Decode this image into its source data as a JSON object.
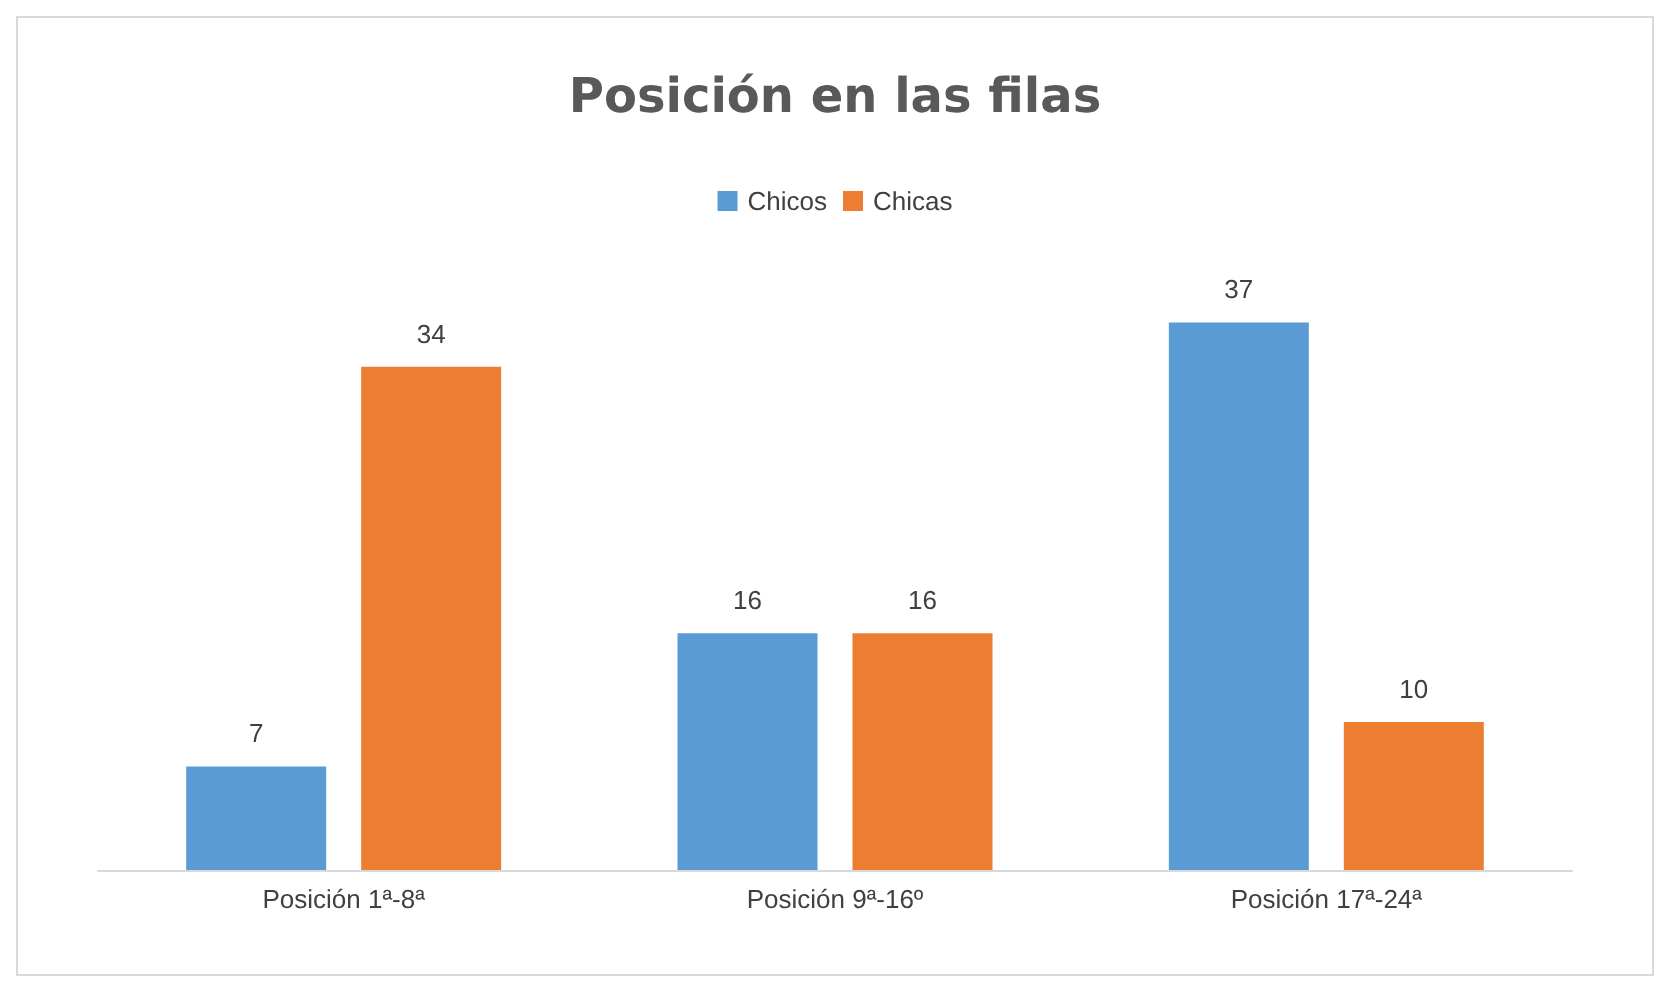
{
  "chart_data": {
    "type": "bar",
    "title": "Posición en las filas",
    "categories": [
      "Posición 1ª-8ª",
      "Posición 9ª-16º",
      "Posición 17ª-24ª"
    ],
    "series": [
      {
        "name": "Chicos",
        "color": "#5b9bd5",
        "values": [
          7,
          16,
          37
        ]
      },
      {
        "name": "Chicas",
        "color": "#ed7d31",
        "values": [
          34,
          16,
          10
        ]
      }
    ],
    "data_labels": true,
    "legend": "top"
  }
}
